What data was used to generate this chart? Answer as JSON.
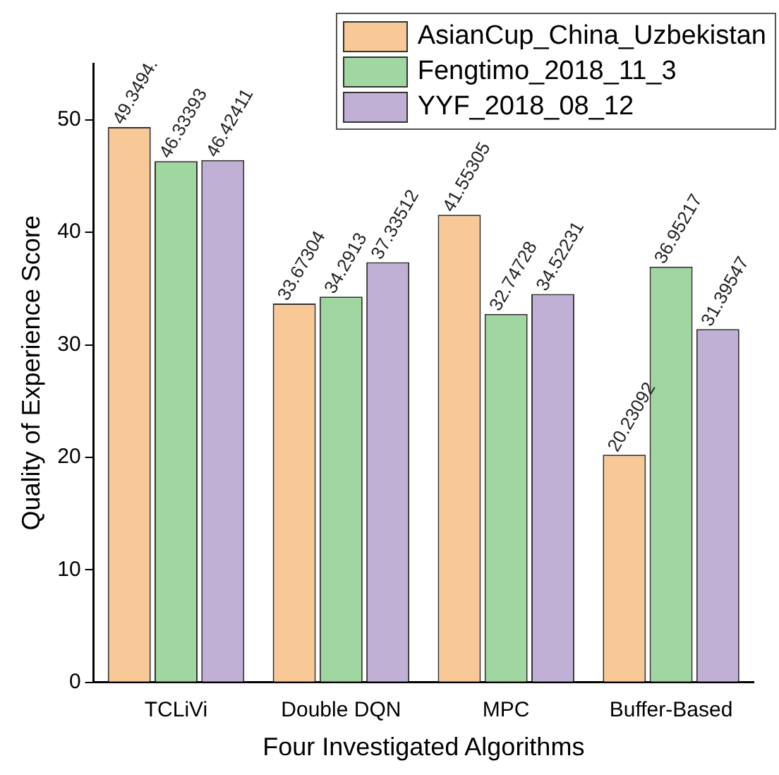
{
  "chart_data": {
    "type": "bar",
    "xlabel": "Four Investigated Algorithms",
    "ylabel": "Quality of Experience Score",
    "categories": [
      "TCLiVi",
      "Double DQN",
      "MPC",
      "Buffer-Based"
    ],
    "series": [
      {
        "name": "AsianCup_China_Uzbekistan",
        "color": "#f9c897",
        "values": [
          49.3494,
          33.67304,
          41.55305,
          20.23092
        ],
        "value_labels": [
          "49.3494.",
          "33.67304",
          "41.55305",
          "20.23092"
        ]
      },
      {
        "name": "Fengtimo_2018_11_3",
        "color": "#a0d69f",
        "values": [
          46.33393,
          34.2913,
          32.74728,
          36.95217
        ],
        "value_labels": [
          "46.33393",
          "34.2913",
          "32.74728",
          "36.95217"
        ]
      },
      {
        "name": "YYF_2018_08_12",
        "color": "#c1b0d6",
        "values": [
          46.42411,
          37.33512,
          34.52231,
          31.39547
        ],
        "value_labels": [
          "46.42411",
          "37.33512",
          "34.52231",
          "31.39547"
        ]
      }
    ],
    "ylim": [
      0,
      55
    ],
    "yticks": [
      0,
      10,
      20,
      30,
      40,
      50
    ],
    "grid": false,
    "legend": "top right"
  }
}
